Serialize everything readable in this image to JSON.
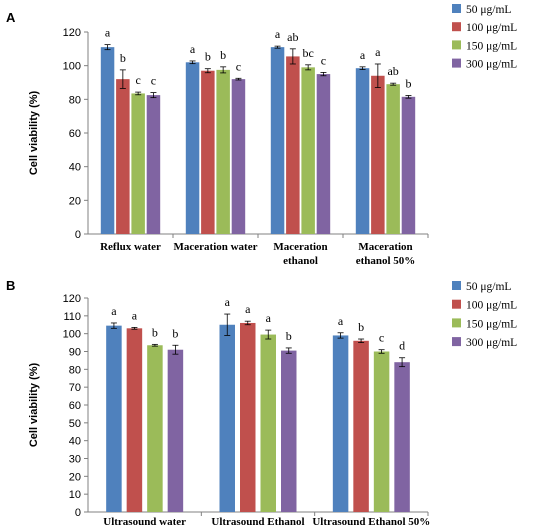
{
  "chart_data": [
    {
      "panel": "A",
      "type": "bar",
      "categories": [
        "Reflux water",
        "Maceration water",
        "Maceration ethanol",
        "Maceration ethanol 50%"
      ],
      "category_lines": [
        [
          "Reflux water"
        ],
        [
          "Maceration water"
        ],
        [
          "Maceration",
          "ethanol"
        ],
        [
          "Maceration",
          "ethanol 50%"
        ]
      ],
      "series": [
        {
          "name": "50 μg/mL",
          "color": "#4F81BD",
          "values": [
            111,
            102,
            111,
            98.5
          ],
          "errors": [
            1.5,
            0.8,
            0.6,
            0.8
          ],
          "labels": [
            "a",
            "a",
            "a",
            "a"
          ]
        },
        {
          "name": "100 μg/mL",
          "color": "#C0504D",
          "values": [
            92,
            97,
            105.5,
            94
          ],
          "errors": [
            5.5,
            1.2,
            4.5,
            7
          ],
          "labels": [
            "b",
            "b",
            "ab",
            "a"
          ]
        },
        {
          "name": "150 μg/mL",
          "color": "#9BBB59",
          "values": [
            83.5,
            97.5,
            99,
            89
          ],
          "errors": [
            0.8,
            1.8,
            1.5,
            0.6
          ],
          "labels": [
            "c",
            "b",
            "bc",
            "ab"
          ]
        },
        {
          "name": "300 μg/mL",
          "color": "#8064A2",
          "values": [
            82.5,
            92,
            95,
            81.5
          ],
          "errors": [
            1.5,
            0.5,
            1.0,
            0.8
          ],
          "labels": [
            "c",
            "c",
            "c",
            "b"
          ]
        }
      ],
      "ylabel": "Cell viability (%)",
      "ylim": [
        0,
        120
      ],
      "yticks": [
        0,
        20,
        40,
        60,
        80,
        100,
        120
      ],
      "legend_position": "top-right"
    },
    {
      "panel": "B",
      "type": "bar",
      "categories": [
        "Ultrasound water",
        "Ultrasound Ethanol",
        "Ultrasound Ethanol 50%"
      ],
      "category_lines": [
        [
          "Ultrasound water"
        ],
        [
          "Ultrasound Ethanol"
        ],
        [
          "Ultrasound Ethanol 50%"
        ]
      ],
      "series": [
        {
          "name": "50 μg/mL",
          "color": "#4F81BD",
          "values": [
            104.5,
            105,
            99
          ],
          "errors": [
            1.5,
            6,
            1.5
          ],
          "labels": [
            "a",
            "a",
            "a"
          ]
        },
        {
          "name": "100 μg/mL",
          "color": "#C0504D",
          "values": [
            103,
            106,
            96
          ],
          "errors": [
            0.5,
            1,
            1
          ],
          "labels": [
            "a",
            "a",
            "b"
          ]
        },
        {
          "name": "150 μg/mL",
          "color": "#9BBB59",
          "values": [
            93.5,
            99.5,
            90
          ],
          "errors": [
            0.5,
            2.5,
            1
          ],
          "labels": [
            "b",
            "a",
            "c"
          ]
        },
        {
          "name": "300 μg/mL",
          "color": "#8064A2",
          "values": [
            91,
            90.5,
            84
          ],
          "errors": [
            2.5,
            1.5,
            2.5
          ],
          "labels": [
            "b",
            "b",
            "d"
          ]
        }
      ],
      "ylabel": "Cell viability (%)",
      "ylim": [
        0,
        120
      ],
      "yticks": [
        0,
        10,
        20,
        30,
        40,
        50,
        60,
        70,
        80,
        90,
        100,
        110,
        120
      ],
      "legend_position": "top-right"
    }
  ]
}
